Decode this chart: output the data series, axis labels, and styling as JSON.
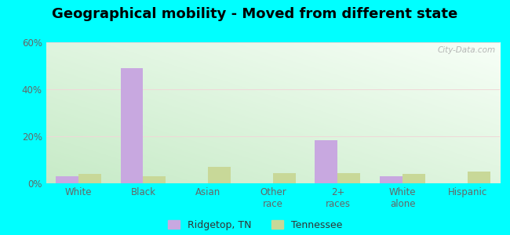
{
  "title": "Geographical mobility - Moved from different state",
  "categories": [
    "White",
    "Black",
    "Asian",
    "Other\nrace",
    "2+\nraces",
    "White\nalone",
    "Hispanic"
  ],
  "ridgetop_values": [
    3.0,
    49.0,
    0.0,
    0.0,
    18.5,
    3.0,
    0.0
  ],
  "tennessee_values": [
    4.0,
    3.0,
    7.0,
    4.5,
    4.5,
    4.0,
    5.0
  ],
  "ridgetop_color": "#c8a8e0",
  "tennessee_color": "#c8d898",
  "ylim": [
    0,
    60
  ],
  "yticks": [
    0,
    20,
    40,
    60
  ],
  "ytick_labels": [
    "0%",
    "20%",
    "40%",
    "60%"
  ],
  "bar_width": 0.35,
  "bg_color_green": "#c8eac8",
  "bg_color_white": "#f0fff0",
  "outer_bg": "#00ffff",
  "legend_labels": [
    "Ridgetop, TN",
    "Tennessee"
  ],
  "title_fontsize": 13,
  "axis_fontsize": 8.5,
  "watermark": "City-Data.com",
  "grid_color": "#e8e8e8",
  "tick_color": "#666666"
}
